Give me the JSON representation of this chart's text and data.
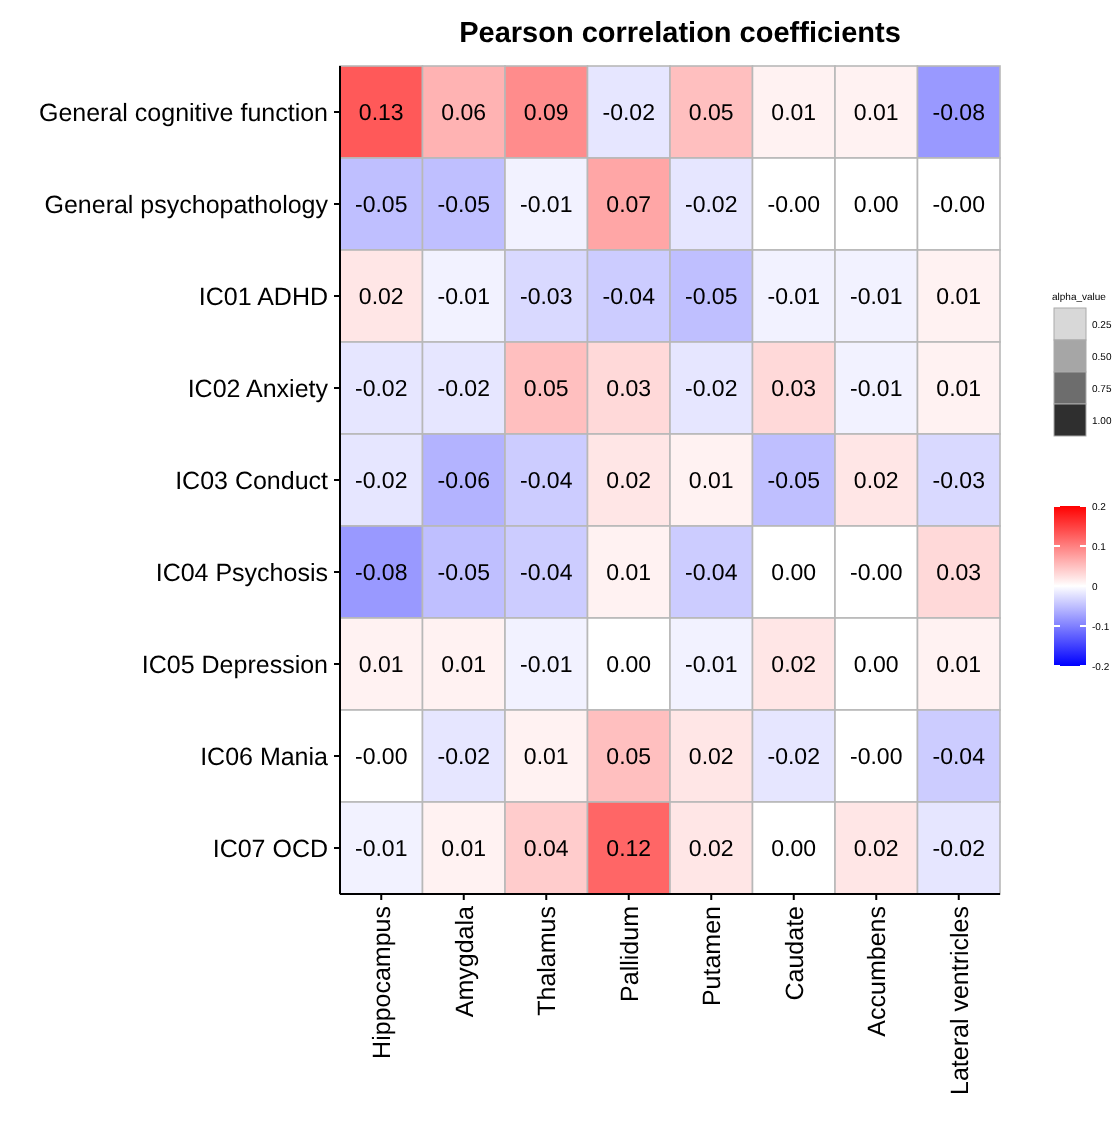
{
  "chart_data": [
    {
      "type": "heatmap",
      "title": "Pearson correlation coefficients",
      "categories": [
        "Hippocampus",
        "Amygdala",
        "Thalamus",
        "Pallidum",
        "Putamen",
        "Caudate",
        "Accumbens",
        "Lateral ventricles"
      ],
      "y_categories": [
        "General cognitive function",
        "General psychopathology",
        "IC01 ADHD",
        "IC02 Anxiety",
        "IC03 Conduct",
        "IC04 Psychosis",
        "IC05 Depression",
        "IC06 Mania",
        "IC07 OCD"
      ],
      "cells": [
        [
          0.13,
          0.06,
          0.09,
          -0.02,
          0.05,
          0.01,
          0.01,
          -0.08
        ],
        [
          -0.05,
          -0.05,
          -0.01,
          0.07,
          -0.02,
          0,
          0,
          0
        ],
        [
          0.02,
          -0.01,
          -0.03,
          -0.04,
          -0.05,
          -0.01,
          -0.01,
          0.01
        ],
        [
          -0.02,
          -0.02,
          0.05,
          0.03,
          -0.02,
          0.03,
          -0.01,
          0.01
        ],
        [
          -0.02,
          -0.06,
          -0.04,
          0.02,
          0.01,
          -0.05,
          0.02,
          -0.03
        ],
        [
          -0.08,
          -0.05,
          -0.04,
          0.01,
          -0.04,
          0,
          0,
          0.03
        ],
        [
          0.01,
          0.01,
          -0.01,
          0,
          -0.01,
          0.02,
          0,
          0.01
        ],
        [
          0,
          -0.02,
          0.01,
          0.05,
          0.02,
          -0.02,
          0,
          -0.04
        ],
        [
          -0.01,
          0.01,
          0.04,
          0.12,
          0.02,
          0,
          0.02,
          -0.02
        ]
      ],
      "cell_labels": [
        [
          "0.13",
          "0.06",
          "0.09",
          "-0.02",
          "0.05",
          "0.01",
          "0.01",
          "-0.08"
        ],
        [
          "-0.05",
          "-0.05",
          "-0.01",
          "0.07",
          "-0.02",
          "-0.00",
          "0.00",
          "-0.00"
        ],
        [
          "0.02",
          "-0.01",
          "-0.03",
          "-0.04",
          "-0.05",
          "-0.01",
          "-0.01",
          "0.01"
        ],
        [
          "-0.02",
          "-0.02",
          "0.05",
          "0.03",
          "-0.02",
          "0.03",
          "-0.01",
          "0.01"
        ],
        [
          "-0.02",
          "-0.06",
          "-0.04",
          "0.02",
          "0.01",
          "-0.05",
          "0.02",
          "-0.03"
        ],
        [
          "-0.08",
          "-0.05",
          "-0.04",
          "0.01",
          "-0.04",
          "0.00",
          "-0.00",
          "0.03"
        ],
        [
          "0.01",
          "0.01",
          "-0.01",
          "0.00",
          "-0.01",
          "0.02",
          "0.00",
          "0.01"
        ],
        [
          "-0.00",
          "-0.02",
          "0.01",
          "0.05",
          "0.02",
          "-0.02",
          "-0.00",
          "-0.04"
        ],
        [
          "-0.01",
          "0.01",
          "0.04",
          "0.12",
          "0.02",
          "0.00",
          "0.02",
          "-0.02"
        ]
      ],
      "colors": [
        "#0000ff",
        "#ffffff",
        "#ff0000"
      ],
      "clim": [
        -0.2,
        0.2
      ],
      "cticks": [
        -0.2,
        -0.1,
        0.0,
        0.1,
        0.2
      ],
      "legend_title": "alpha_value",
      "annotations": [
        "0.25",
        "0.50",
        "0.75",
        "1.00"
      ]
    }
  ]
}
